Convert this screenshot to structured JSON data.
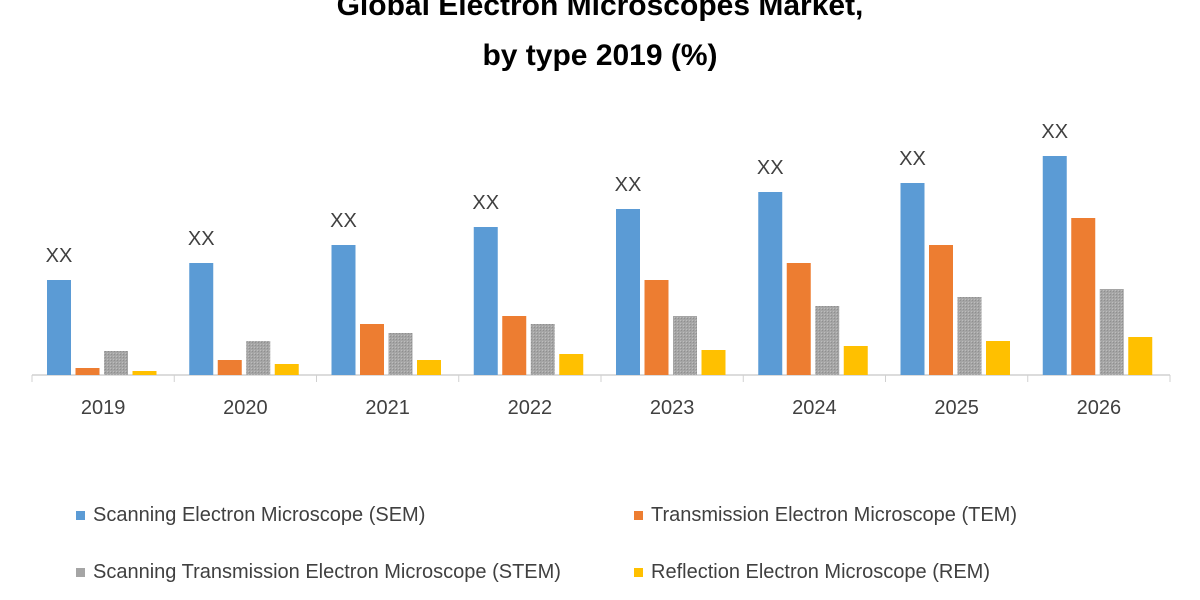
{
  "chart_data": {
    "type": "bar",
    "title": "Global Electron Microscopes Market,",
    "subtitle": "by type 2019 (%)",
    "xlabel": "",
    "ylabel": "",
    "categories": [
      "2019",
      "2020",
      "2021",
      "2022",
      "2023",
      "2024",
      "2025",
      "2026"
    ],
    "series": [
      {
        "name": "Scanning Electron Microscope (SEM)",
        "color": "#5B9BD5",
        "values": [
          95,
          112,
          130,
          148,
          166,
          183,
          192,
          219
        ],
        "data_labels": [
          "XX",
          "XX",
          "XX",
          "XX",
          "XX",
          "XX",
          "XX",
          "XX"
        ]
      },
      {
        "name": "Transmission Electron Microscope (TEM)",
        "color": "#ED7D31",
        "values": [
          7,
          15,
          51,
          59,
          95,
          112,
          130,
          157
        ]
      },
      {
        "name": "Scanning Transmission Electron Microscope (STEM)",
        "color": "#A5A5A5",
        "values": [
          24,
          34,
          42,
          51,
          59,
          69,
          78,
          86
        ]
      },
      {
        "name": "Reflection Electron Microscope (REM)",
        "color": "#FFC000",
        "values": [
          4,
          11,
          15,
          21,
          25,
          29,
          34,
          38
        ]
      }
    ],
    "ylim": [
      0,
      240
    ],
    "y_axis_shown": false,
    "grid": false,
    "legend_placement": "bottom"
  }
}
